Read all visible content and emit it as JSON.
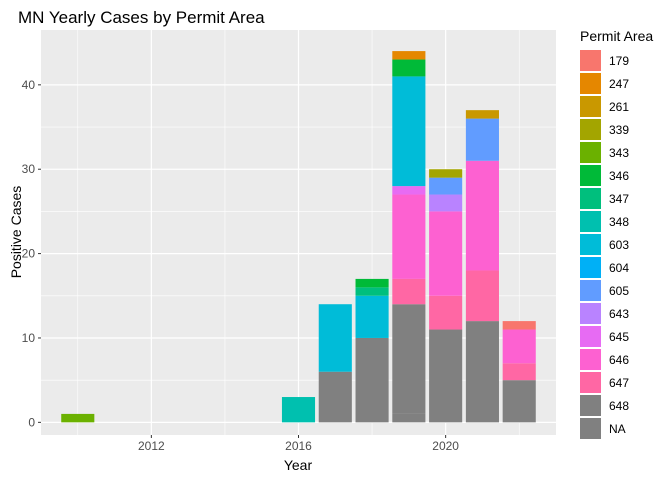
{
  "chart_data": {
    "type": "bar",
    "stacked": true,
    "title": "MN Yearly Cases by Permit Area",
    "xlabel": "Year",
    "ylabel": "Positive Cases",
    "xlim": [
      2009.0,
      2023.0
    ],
    "ylim": [
      -1.5,
      46.5
    ],
    "x_ticks": [
      2012,
      2016,
      2020
    ],
    "y_ticks": [
      0,
      10,
      20,
      30,
      40
    ],
    "legend_title": "Permit Area",
    "legend_position": "right",
    "series": [
      {
        "name": "179",
        "color": "#F8766D"
      },
      {
        "name": "247",
        "color": "#E58700"
      },
      {
        "name": "261",
        "color": "#C99800"
      },
      {
        "name": "339",
        "color": "#A3A500"
      },
      {
        "name": "343",
        "color": "#6BB100"
      },
      {
        "name": "346",
        "color": "#00BA38"
      },
      {
        "name": "347",
        "color": "#00BF7D"
      },
      {
        "name": "348",
        "color": "#00C0AF"
      },
      {
        "name": "603",
        "color": "#00BCD8"
      },
      {
        "name": "604",
        "color": "#00B0F6"
      },
      {
        "name": "605",
        "color": "#619CFF"
      },
      {
        "name": "643",
        "color": "#B983FF"
      },
      {
        "name": "645",
        "color": "#E76BF3"
      },
      {
        "name": "646",
        "color": "#FD61D1"
      },
      {
        "name": "647",
        "color": "#FF67A4"
      },
      {
        "name": "648",
        "color": "#808080"
      },
      {
        "name": "NA",
        "color": "#808080"
      }
    ],
    "bars": [
      {
        "year": 2010,
        "segments": [
          {
            "area": "343",
            "value": 1
          }
        ]
      },
      {
        "year": 2016,
        "segments": [
          {
            "area": "348",
            "value": 3
          }
        ]
      },
      {
        "year": 2017,
        "segments": [
          {
            "area": "NA",
            "value": 6
          },
          {
            "area": "603",
            "value": 8
          }
        ]
      },
      {
        "year": 2018,
        "segments": [
          {
            "area": "NA",
            "value": 10
          },
          {
            "area": "603",
            "value": 5
          },
          {
            "area": "347",
            "value": 1
          },
          {
            "area": "346",
            "value": 1
          }
        ]
      },
      {
        "year": 2019,
        "segments": [
          {
            "area": "NA",
            "value": 1
          },
          {
            "area": "648",
            "value": 13
          },
          {
            "area": "647",
            "value": 3
          },
          {
            "area": "646",
            "value": 10
          },
          {
            "area": "645",
            "value": 1
          },
          {
            "area": "603",
            "value": 13
          },
          {
            "area": "346",
            "value": 2
          },
          {
            "area": "247",
            "value": 1
          }
        ]
      },
      {
        "year": 2020,
        "segments": [
          {
            "area": "648",
            "value": 11
          },
          {
            "area": "647",
            "value": 4
          },
          {
            "area": "646",
            "value": 10
          },
          {
            "area": "643",
            "value": 2
          },
          {
            "area": "605",
            "value": 2
          },
          {
            "area": "339",
            "value": 1
          }
        ]
      },
      {
        "year": 2021,
        "segments": [
          {
            "area": "648",
            "value": 12
          },
          {
            "area": "647",
            "value": 6
          },
          {
            "area": "646",
            "value": 13
          },
          {
            "area": "605",
            "value": 5
          },
          {
            "area": "261",
            "value": 1
          }
        ]
      },
      {
        "year": 2022,
        "segments": [
          {
            "area": "648",
            "value": 5
          },
          {
            "area": "647",
            "value": 2
          },
          {
            "area": "646",
            "value": 4
          },
          {
            "area": "179",
            "value": 1
          }
        ]
      }
    ]
  }
}
